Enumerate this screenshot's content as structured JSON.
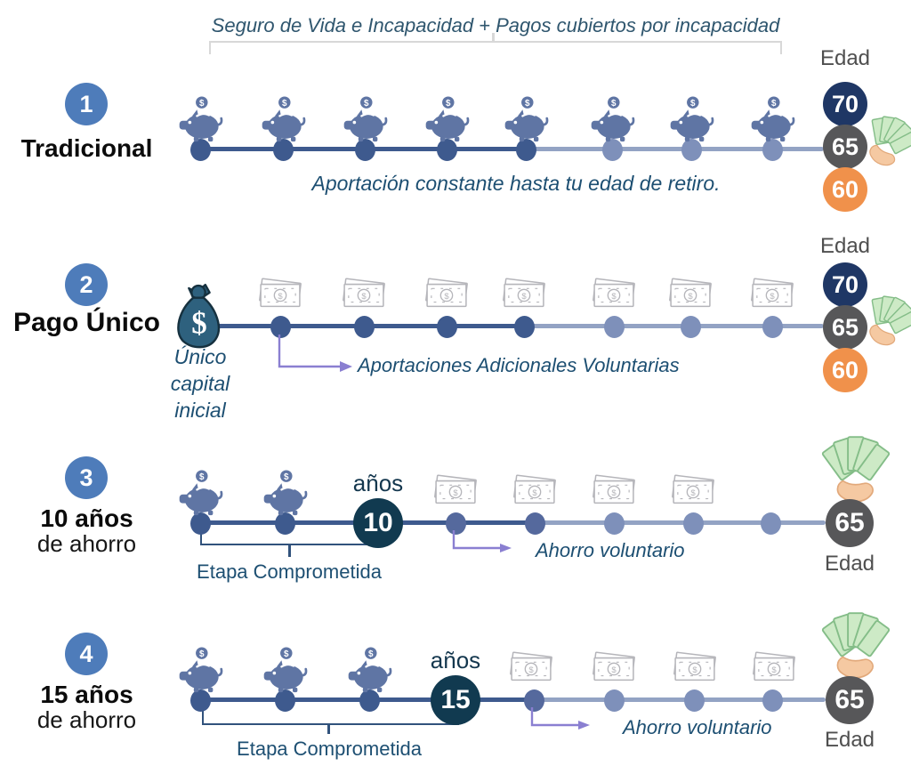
{
  "header": {
    "title": "Seguro de Vida e Incapacidad + Pagos cubiertos por incapacidad"
  },
  "labels": {
    "edad": "Edad",
    "anos": "años"
  },
  "rows": [
    {
      "number": "1",
      "title": "Tradicional",
      "caption": "Aportación constante hasta tu edad de retiro.",
      "piggy_count": 8,
      "ages": [
        "70",
        "65",
        "60"
      ]
    },
    {
      "number": "2",
      "title": "Pago Único",
      "bag_caption_lines": [
        "Único",
        "capital",
        "inicial"
      ],
      "annotation": "Aportaciones Adicionales Voluntarias",
      "bill_count": 7,
      "ages": [
        "70",
        "65",
        "60"
      ]
    },
    {
      "number": "3",
      "title": "10 años",
      "subtitle": "de ahorro",
      "years_value": "10",
      "bracket_label": "Etapa Comprometida",
      "annotation": "Ahorro voluntario",
      "piggy_count": 2,
      "bill_count": 4,
      "end_age": "65"
    },
    {
      "number": "4",
      "title": "15 años",
      "subtitle": "de ahorro",
      "years_value": "15",
      "bracket_label": "Etapa Comprometida",
      "annotation": "Ahorro voluntario",
      "piggy_count": 3,
      "bill_count": 4,
      "end_age": "65"
    }
  ],
  "icons": {
    "piggy": "piggy-bank-icon",
    "banknote": "banknote-icon",
    "money_bag": "money-bag-icon",
    "cash_in_hand": "cash-in-hand-icon",
    "arrow": "elbow-arrow-icon"
  },
  "colors": {
    "accent_blue": "#4e7cba",
    "timeline_dark": "#3e5a8e",
    "timeline_light": "#93a3c4",
    "dot_dark": "#3e5a8e",
    "dot_mid": "#55699d",
    "dot_light": "#7e90ba",
    "piggy": "#5f75a4",
    "navy_badge": "#1f3765",
    "grey_badge": "#575759",
    "orange_badge": "#f0914b",
    "teal_badge": "#113a50",
    "caption_text": "#1d4f72",
    "header_text": "#2f566e",
    "anos_text": "#14374e",
    "muted_text": "#4f4f4f",
    "arrow_purple": "#8a7fd1",
    "bracket_grey": "#d8d8d8",
    "bracket_navy": "#31527c",
    "bag_fill": "#2e617e",
    "bag_outline": "#16313f",
    "bill_stroke": "#b5b5ba",
    "cash_green": "#cdeac6",
    "cash_green_stroke": "#84bd88",
    "hand": "#f5c9a2",
    "hand_stroke": "#e2a97b"
  }
}
